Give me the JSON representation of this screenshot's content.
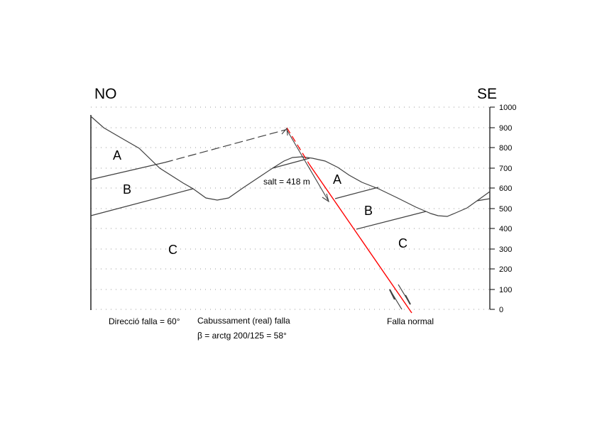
{
  "orientation": {
    "left": "NO",
    "right": "SE"
  },
  "elevation_axis": {
    "ticks": [
      "0",
      "100",
      "200",
      "300",
      "400",
      "500",
      "600",
      "700",
      "800",
      "900",
      "1000"
    ]
  },
  "units": {
    "a_left": "A",
    "b_left": "B",
    "c_left": "C",
    "a_right": "A",
    "b_right": "B",
    "c_right": "C"
  },
  "annotations": {
    "throw": "salt = 418 m",
    "strike": "Direcció falla = 60°",
    "dip_title": "Cabussament (real) falla",
    "dip_formula": "β = arctg 200/125 = 58°",
    "fault_type": "Falla normal"
  },
  "colors": {
    "fault": "#ff0000",
    "lines": "#404040",
    "guides": "#999999"
  }
}
